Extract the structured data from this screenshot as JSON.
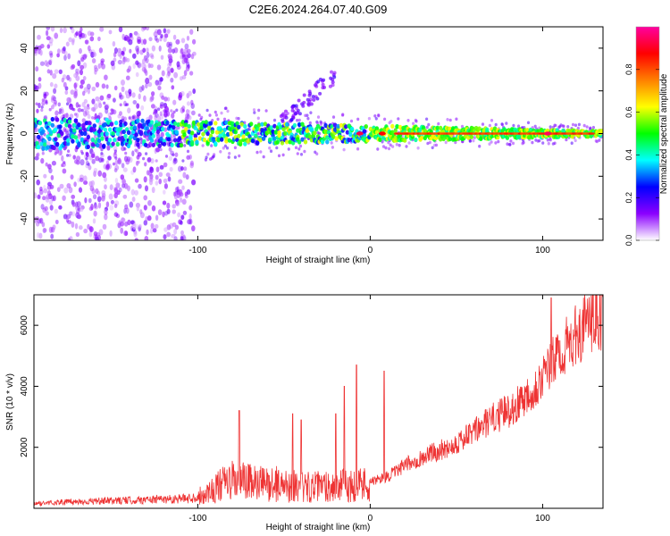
{
  "figure_title": "C2E6.2024.264.07.40.G09",
  "chart_data": [
    {
      "type": "heatmap",
      "title": "",
      "xlabel": "Height of straight line (km)",
      "ylabel": "Frequency (Hz)",
      "xlim": [
        -195,
        135
      ],
      "ylim": [
        -50,
        50
      ],
      "x_ticks": [
        -100,
        0,
        100
      ],
      "y_ticks": [
        -40,
        -20,
        0,
        20,
        40
      ],
      "colorbar": {
        "label": "Normalized spectral amplitude",
        "range": [
          0,
          1
        ],
        "ticks": [
          "0.0",
          "0.2",
          "0.4",
          "0.6",
          "0.8"
        ],
        "colors": [
          "#ffffff",
          "#8b00ff",
          "#0000ff",
          "#00ffff",
          "#00ff00",
          "#ffff00",
          "#ff8000",
          "#ff0000",
          "#ff00a0"
        ]
      },
      "features": {
        "noise_region_x": [
          -195,
          -102
        ],
        "carrier_frequency_hz": 0,
        "spread_hz_at_xmin": 50,
        "spread_hz_at_xmax": 3,
        "high_amplitude_from_x": 0
      }
    },
    {
      "type": "line",
      "title": "",
      "xlabel": "Height of straight line (km)",
      "ylabel": "SNR (10 * v/v)",
      "xlim": [
        -195,
        135
      ],
      "ylim": [
        0,
        7000
      ],
      "x_ticks": [
        -100,
        0,
        100
      ],
      "y_ticks": [
        2000,
        4000,
        6000
      ],
      "color": "#ee3333",
      "series": [
        {
          "x": [
            -195,
            -180,
            -160,
            -140,
            -120,
            -105,
            -100,
            -95,
            -90,
            -85,
            -80,
            -75,
            -70,
            -65,
            -60,
            -55,
            -50,
            -45,
            -40,
            -35,
            -30,
            -25,
            -20,
            -15,
            -10,
            -5,
            0,
            5,
            10,
            15,
            20,
            25,
            30,
            35,
            40,
            45,
            50,
            55,
            60,
            65,
            70,
            75,
            80,
            85,
            90,
            95,
            100,
            105,
            110,
            115,
            120,
            125,
            130,
            135
          ],
          "y": [
            150,
            200,
            230,
            260,
            300,
            330,
            380,
            500,
            650,
            800,
            900,
            900,
            850,
            800,
            800,
            800,
            750,
            750,
            700,
            700,
            700,
            750,
            700,
            750,
            750,
            800,
            850,
            950,
            1050,
            1200,
            1400,
            1550,
            1650,
            1800,
            1900,
            2000,
            2150,
            2300,
            2500,
            2700,
            2900,
            3050,
            3200,
            3400,
            3700,
            3950,
            4300,
            4700,
            5100,
            5400,
            5700,
            6000,
            6150,
            6250
          ]
        }
      ],
      "spikes": [
        {
          "x": -76,
          "y": 3200
        },
        {
          "x": -45,
          "y": 3100
        },
        {
          "x": -40,
          "y": 2900
        },
        {
          "x": -20,
          "y": 3100
        },
        {
          "x": -15,
          "y": 4000
        },
        {
          "x": -8,
          "y": 4700
        },
        {
          "x": 8,
          "y": 4500
        },
        {
          "x": 105,
          "y": 6900
        }
      ]
    }
  ]
}
